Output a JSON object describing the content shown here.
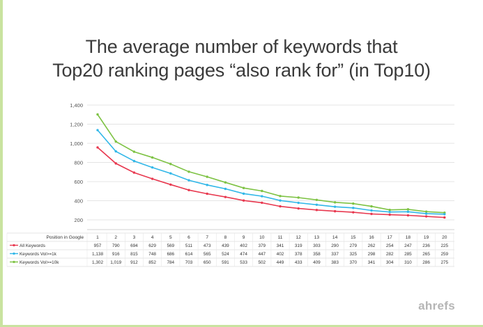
{
  "chart_data": {
    "type": "line",
    "title_lines": [
      "The average number of keywords that",
      "Top20 ranking pages “also rank for” (in Top10)"
    ],
    "xlabel": "Position in Google",
    "ylabel": "",
    "x": [
      1,
      2,
      3,
      4,
      5,
      6,
      7,
      8,
      9,
      10,
      11,
      12,
      13,
      14,
      15,
      16,
      17,
      18,
      19,
      20
    ],
    "ylim": [
      200,
      1400
    ],
    "yticks": [
      200,
      400,
      600,
      800,
      1000,
      1200,
      1400
    ],
    "ytick_labels": [
      "200",
      "400",
      "600",
      "800",
      "1,000",
      "1,200",
      "1,400"
    ],
    "grid": true,
    "series": [
      {
        "name": "All Keywords",
        "color": "#e8384f",
        "values": [
          957,
          790,
          694,
          629,
          569,
          511,
          473,
          439,
          402,
          379,
          341,
          319,
          303,
          290,
          279,
          262,
          254,
          247,
          236,
          225
        ],
        "labels": [
          "957",
          "790",
          "694",
          "629",
          "569",
          "511",
          "473",
          "439",
          "402",
          "379",
          "341",
          "319",
          "303",
          "290",
          "279",
          "262",
          "254",
          "247",
          "236",
          "225"
        ]
      },
      {
        "name": "Keywords Vol>=1k",
        "color": "#31b7e8",
        "values": [
          1138,
          916,
          815,
          748,
          686,
          614,
          565,
          524,
          474,
          447,
          402,
          378,
          358,
          337,
          325,
          298,
          282,
          285,
          265,
          259
        ],
        "labels": [
          "1,138",
          "916",
          "815",
          "748",
          "686",
          "614",
          "565",
          "524",
          "474",
          "447",
          "402",
          "378",
          "358",
          "337",
          "325",
          "298",
          "282",
          "285",
          "265",
          "259"
        ]
      },
      {
        "name": "Keywords Vol>=10k",
        "color": "#7dc243",
        "values": [
          1302,
          1019,
          912,
          852,
          784,
          703,
          650,
          591,
          533,
          502,
          449,
          433,
          409,
          383,
          370,
          341,
          304,
          310,
          286,
          275
        ],
        "labels": [
          "1,302",
          "1,019",
          "912",
          "852",
          "784",
          "703",
          "650",
          "591",
          "533",
          "502",
          "449",
          "433",
          "409",
          "383",
          "370",
          "341",
          "304",
          "310",
          "286",
          "275"
        ]
      }
    ]
  },
  "brand": "ahrefs",
  "colors": {
    "frame": "#c9e3a0",
    "title": "#3a3a3a",
    "grid": "#e4e4e4",
    "brand": "#b5b5b5"
  }
}
